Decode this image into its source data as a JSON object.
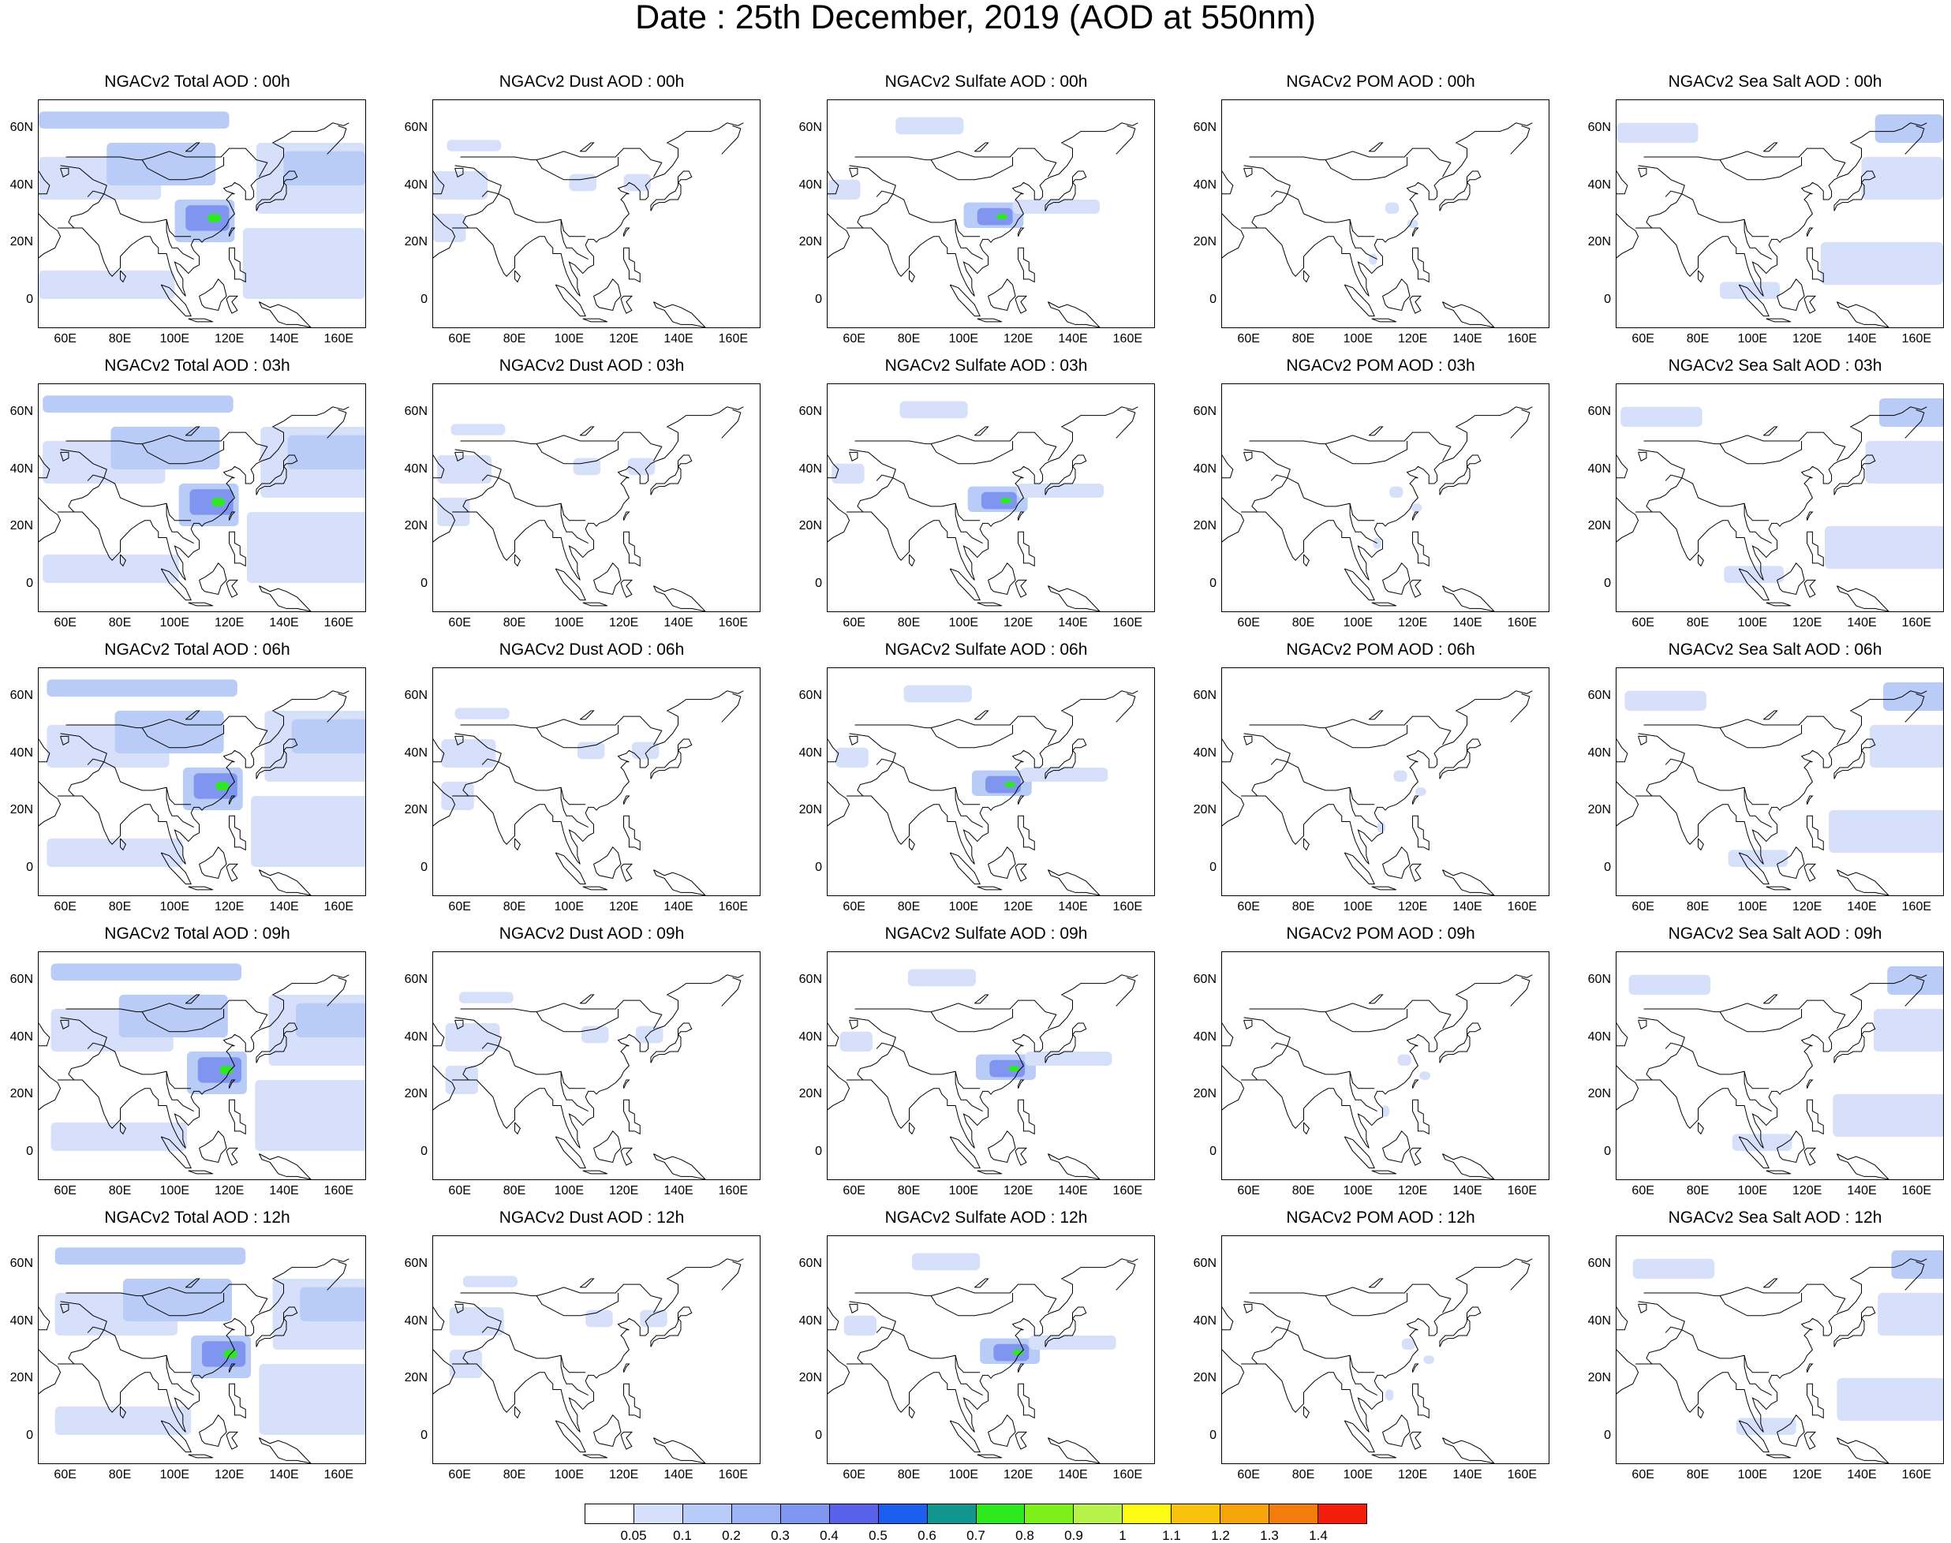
{
  "title": "Date : 25th December, 2019 (AOD at 550nm)",
  "axes": {
    "x_ticks": [
      "60E",
      "80E",
      "100E",
      "120E",
      "140E",
      "160E"
    ],
    "y_ticks": [
      "60N",
      "40N",
      "20N",
      "0"
    ]
  },
  "species": [
    {
      "key": "total",
      "label": "Total"
    },
    {
      "key": "dust",
      "label": "Dust"
    },
    {
      "key": "sulfate",
      "label": "Sulfate"
    },
    {
      "key": "pom",
      "label": "POM"
    },
    {
      "key": "seasalt",
      "label": "Sea Salt"
    }
  ],
  "hours": [
    "00h",
    "03h",
    "06h",
    "09h",
    "12h"
  ],
  "panel_titles": [
    [
      "NGACv2 Total AOD : 00h",
      "NGACv2 Dust AOD : 00h",
      "NGACv2 Sulfate AOD : 00h",
      "NGACv2 POM AOD : 00h",
      "NGACv2 Sea Salt AOD : 00h"
    ],
    [
      "NGACv2 Total AOD : 03h",
      "NGACv2 Dust AOD : 03h",
      "NGACv2 Sulfate AOD : 03h",
      "NGACv2 POM AOD : 03h",
      "NGACv2 Sea Salt AOD : 03h"
    ],
    [
      "NGACv2 Total AOD : 06h",
      "NGACv2 Dust AOD : 06h",
      "NGACv2 Sulfate AOD : 06h",
      "NGACv2 POM AOD : 06h",
      "NGACv2 Sea Salt AOD : 06h"
    ],
    [
      "NGACv2 Total AOD : 09h",
      "NGACv2 Dust AOD : 09h",
      "NGACv2 Sulfate AOD : 09h",
      "NGACv2 POM AOD : 09h",
      "NGACv2 Sea Salt  AOD : 09h"
    ],
    [
      "NGACv2 Total AOD  : 12h",
      "NGACv2 Dust AOD : 12h",
      "NGACv2 Sulfate AOD : 12h",
      "NGACv2 POM  AOD : 12h",
      "NGACv2 Sea Salt  AOD : 12h"
    ]
  ],
  "colorbar": {
    "labels": [
      "0.05",
      "0.1",
      "0.2",
      "0.3",
      "0.4",
      "0.5",
      "0.6",
      "0.7",
      "0.8",
      "0.9",
      "1",
      "1.1",
      "1.2",
      "1.3",
      "1.4"
    ],
    "colors": [
      "#ffffff",
      "#d6e0fb",
      "#b9cbf7",
      "#9db4f4",
      "#7f95ef",
      "#5762e8",
      "#1c5fef",
      "#12958d",
      "#2ee81f",
      "#7df01a",
      "#b7f24a",
      "#fbfb14",
      "#f8c10a",
      "#f5a40a",
      "#f37d0c",
      "#f41d0c"
    ]
  },
  "colors": {
    "coast": "#000000",
    "aod_light": "#d6e0fb",
    "aod_mid": "#b9cbf7",
    "aod_high": "#7f95ef",
    "aod_peak": "#2ee81f"
  }
}
